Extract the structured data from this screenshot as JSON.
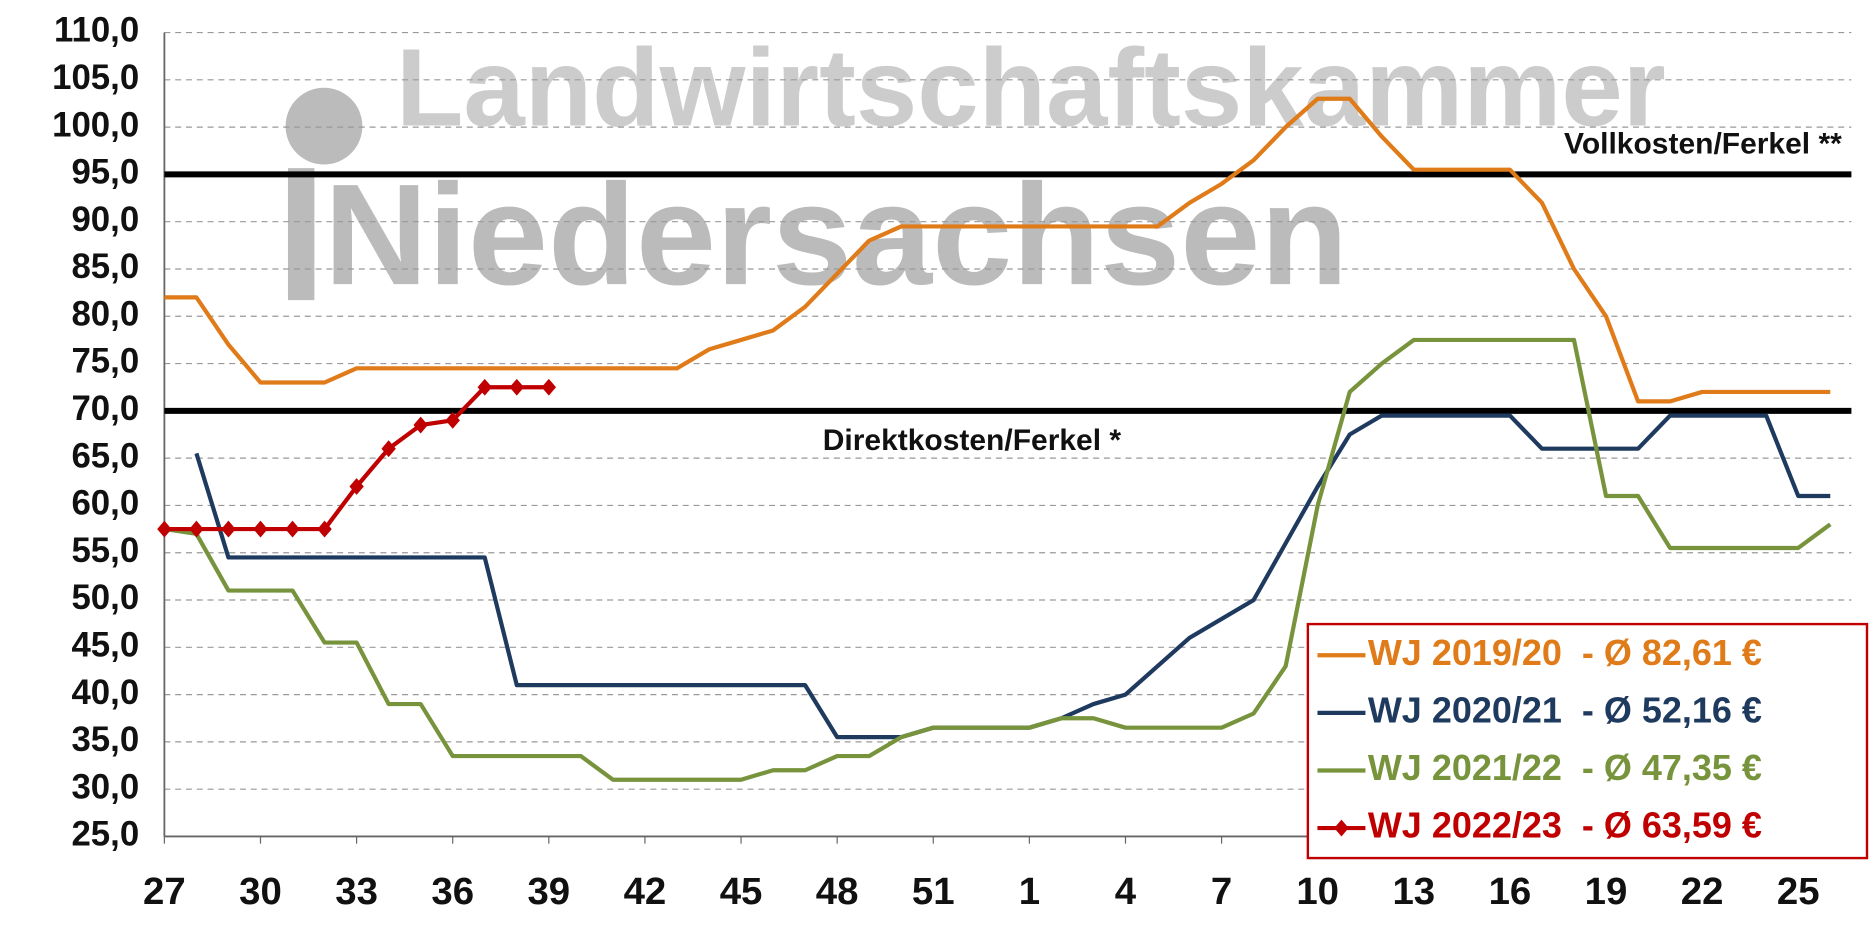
{
  "chart_data": {
    "type": "line",
    "watermark": [
      "Landwirtschaftskammer",
      "Niedersachsen"
    ],
    "categories": [
      "27",
      null,
      null,
      "30",
      null,
      null,
      "33",
      null,
      null,
      "36",
      null,
      null,
      "39",
      null,
      null,
      "42",
      null,
      null,
      "45",
      null,
      null,
      "48",
      null,
      null,
      "51",
      null,
      null,
      "1",
      null,
      null,
      "4",
      null,
      null,
      "7",
      null,
      null,
      "10",
      null,
      null,
      "13",
      null,
      null,
      "16",
      null,
      null,
      "19",
      null,
      null,
      "22",
      null,
      null,
      "25",
      null
    ],
    "ylim": [
      25,
      110
    ],
    "yticks": [
      {
        "value": 25,
        "label": "25,0"
      },
      {
        "value": 30,
        "label": "30,0"
      },
      {
        "value": 35,
        "label": "35,0"
      },
      {
        "value": 40,
        "label": "40,0"
      },
      {
        "value": 45,
        "label": "45,0"
      },
      {
        "value": 50,
        "label": "50,0"
      },
      {
        "value": 55,
        "label": "55,0"
      },
      {
        "value": 60,
        "label": "60,0"
      },
      {
        "value": 65,
        "label": "65,0"
      },
      {
        "value": 70,
        "label": "70,0"
      },
      {
        "value": 75,
        "label": "75,0"
      },
      {
        "value": 80,
        "label": "80,0"
      },
      {
        "value": 85,
        "label": "85,0"
      },
      {
        "value": 90,
        "label": "90,0"
      },
      {
        "value": 95,
        "label": "95,0"
      },
      {
        "value": 100,
        "label": "100,0"
      },
      {
        "value": 105,
        "label": "105,0"
      },
      {
        "value": 110,
        "label": "110,0"
      }
    ],
    "grid": true,
    "legend": "lower right",
    "reference_lines": [
      {
        "label": "Vollkosten/Ferkel **",
        "value": 95
      },
      {
        "label": "Direktkosten/Ferkel *",
        "value": 70
      }
    ],
    "series": [
      {
        "name": "WJ 2019/20  - Ø 82,61 €",
        "color": "#e07b1a",
        "values": [
          82,
          82,
          77,
          73,
          73,
          73,
          74.5,
          74.5,
          74.5,
          74.5,
          74.5,
          74.5,
          74.5,
          74.5,
          74.5,
          74.5,
          74.5,
          76.5,
          77.5,
          78.5,
          81,
          84.5,
          88,
          89.5,
          89.5,
          89.5,
          89.5,
          89.5,
          89.5,
          89.5,
          89.5,
          89.5,
          92,
          94,
          96.5,
          100,
          103,
          103,
          99,
          95.5,
          95.5,
          95.5,
          95.5,
          92,
          85,
          80,
          71,
          71,
          72,
          72,
          72,
          72,
          72
        ]
      },
      {
        "name": "WJ 2020/21  - Ø 52,16 €",
        "color": "#1f3a5f",
        "values": [
          null,
          65.5,
          54.5,
          54.5,
          54.5,
          54.5,
          54.5,
          54.5,
          54.5,
          54.5,
          54.5,
          41,
          41,
          41,
          41,
          41,
          41,
          41,
          41,
          41,
          41,
          35.5,
          35.5,
          35.5,
          36.5,
          36.5,
          36.5,
          36.5,
          37.5,
          39,
          40,
          43,
          46,
          48,
          50,
          56,
          62,
          67.5,
          69.5,
          69.5,
          69.5,
          69.5,
          69.5,
          66,
          66,
          66,
          66,
          69.5,
          69.5,
          69.5,
          69.5,
          61,
          61
        ]
      },
      {
        "name": "WJ 2021/22  - Ø 47,35 €",
        "color": "#77933c",
        "values": [
          57.5,
          57,
          51,
          51,
          51,
          45.5,
          45.5,
          39,
          39,
          33.5,
          33.5,
          33.5,
          33.5,
          33.5,
          31,
          31,
          31,
          31,
          31,
          32,
          32,
          33.5,
          33.5,
          35.5,
          36.5,
          36.5,
          36.5,
          36.5,
          37.5,
          37.5,
          36.5,
          36.5,
          36.5,
          36.5,
          38,
          43,
          60,
          72,
          75,
          77.5,
          77.5,
          77.5,
          77.5,
          77.5,
          77.5,
          61,
          61,
          55.5,
          55.5,
          55.5,
          55.5,
          55.5,
          58
        ]
      },
      {
        "name": "WJ 2022/23  - Ø 63,59 €",
        "color": "#c00000",
        "marker": "diamond",
        "values": [
          57.5,
          57.5,
          57.5,
          57.5,
          57.5,
          57.5,
          62,
          66,
          68.5,
          69,
          72.5,
          72.5,
          72.5,
          null,
          null,
          null,
          null,
          null,
          null,
          null,
          null,
          null,
          null,
          null,
          null,
          null,
          null,
          null,
          null,
          null,
          null,
          null,
          null,
          null,
          null,
          null,
          null,
          null,
          null,
          null,
          null,
          null,
          null,
          null,
          null,
          null,
          null,
          null,
          null,
          null,
          null,
          null,
          null
        ]
      }
    ]
  }
}
